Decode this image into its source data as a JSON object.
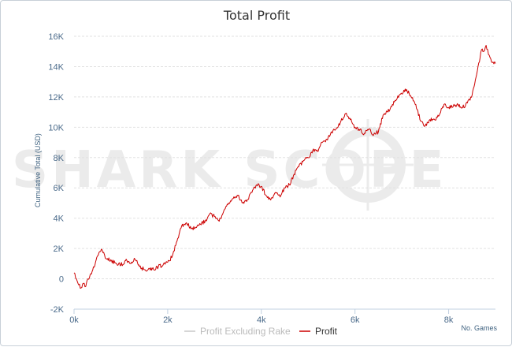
{
  "chart_data": {
    "type": "line",
    "title": "Total Profit",
    "xlabel": "No. Games",
    "ylabel": "Cumulative Total (USD)",
    "xlim": [
      0,
      9000
    ],
    "ylim": [
      -2000,
      16000
    ],
    "x_ticks": [
      0,
      2000,
      4000,
      6000,
      8000
    ],
    "x_tick_labels": [
      "0k",
      "2k",
      "4k",
      "6k",
      "8k"
    ],
    "y_ticks": [
      -2000,
      0,
      2000,
      4000,
      6000,
      8000,
      10000,
      12000,
      14000,
      16000
    ],
    "y_tick_labels": [
      "-2K",
      "0",
      "2K",
      "4K",
      "6K",
      "8K",
      "10K",
      "12K",
      "14K",
      "16K"
    ],
    "grid": "horizontal dashed",
    "legend_position": "bottom-center",
    "watermark": "SHARK SCOPE",
    "series": [
      {
        "name": "Profit Excluding Rake",
        "color": "#c8c8c8",
        "x": [],
        "y": []
      },
      {
        "name": "Profit",
        "color": "#cc0000",
        "x": [
          0,
          50,
          100,
          150,
          200,
          250,
          300,
          400,
          500,
          550,
          600,
          650,
          700,
          800,
          900,
          1000,
          1100,
          1200,
          1300,
          1400,
          1500,
          1550,
          1600,
          1700,
          1800,
          1900,
          2000,
          2100,
          2200,
          2300,
          2400,
          2500,
          2600,
          2700,
          2800,
          2900,
          3000,
          3100,
          3200,
          3300,
          3400,
          3500,
          3600,
          3700,
          3800,
          3900,
          4000,
          4100,
          4200,
          4300,
          4400,
          4500,
          4600,
          4700,
          4800,
          4900,
          5000,
          5100,
          5200,
          5300,
          5400,
          5500,
          5600,
          5700,
          5800,
          5900,
          6000,
          6100,
          6200,
          6300,
          6400,
          6500,
          6600,
          6700,
          6800,
          6900,
          7000,
          7100,
          7200,
          7300,
          7400,
          7500,
          7600,
          7700,
          7800,
          7900,
          8000,
          8100,
          8200,
          8300,
          8400,
          8500,
          8600,
          8700,
          8750,
          8800,
          8850,
          8900,
          8950,
          9000
        ],
        "y": [
          400,
          0,
          -400,
          -600,
          -300,
          -500,
          0,
          600,
          1500,
          1800,
          1900,
          1600,
          1300,
          1200,
          1000,
          900,
          1200,
          1000,
          1300,
          800,
          600,
          500,
          700,
          600,
          800,
          900,
          1100,
          1500,
          2500,
          3500,
          3700,
          3300,
          3400,
          3600,
          3800,
          4300,
          4100,
          3800,
          4500,
          5000,
          5300,
          5500,
          5000,
          5200,
          5700,
          6200,
          6100,
          5500,
          5200,
          5700,
          5400,
          6000,
          6200,
          6900,
          7400,
          7800,
          8000,
          8500,
          8400,
          9000,
          9200,
          9700,
          9900,
          10400,
          10900,
          10500,
          10000,
          9800,
          9600,
          9900,
          9500,
          9700,
          10800,
          11000,
          11500,
          11900,
          12200,
          12500,
          12000,
          11500,
          10400,
          10100,
          10500,
          10500,
          10800,
          11500,
          11300,
          11400,
          11500,
          11300,
          11600,
          12100,
          13500,
          15100,
          15000,
          15400,
          14800,
          14500,
          14300,
          14200
        ]
      }
    ]
  }
}
